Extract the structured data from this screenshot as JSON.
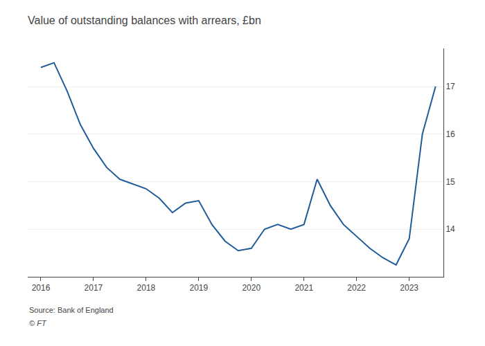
{
  "chart_data": {
    "type": "line",
    "title": "Value of outstanding balances with arrears, £bn",
    "annotations": [
      "Source: Bank of England",
      "© FT"
    ],
    "color": "#1f5c99",
    "grid": "y",
    "xlim": [
      2015.75,
      2023.65
    ],
    "xticks": [
      2016,
      2017,
      2018,
      2019,
      2020,
      2021,
      2022,
      2023
    ],
    "ylim": [
      13.0,
      17.8
    ],
    "yticks": [
      14,
      15,
      16,
      17
    ],
    "x": [
      2016.0,
      2016.25,
      2016.5,
      2016.75,
      2017.0,
      2017.25,
      2017.5,
      2017.75,
      2018.0,
      2018.25,
      2018.5,
      2018.75,
      2019.0,
      2019.25,
      2019.5,
      2019.75,
      2020.0,
      2020.25,
      2020.5,
      2020.75,
      2021.0,
      2021.25,
      2021.5,
      2021.75,
      2022.0,
      2022.25,
      2022.5,
      2022.75,
      2023.0,
      2023.25,
      2023.5
    ],
    "values": [
      17.4,
      17.5,
      16.9,
      16.2,
      15.7,
      15.3,
      15.05,
      14.95,
      14.85,
      14.65,
      14.35,
      14.55,
      14.6,
      14.1,
      13.75,
      13.55,
      13.6,
      14.0,
      14.1,
      14.0,
      14.1,
      15.05,
      14.5,
      14.1,
      13.85,
      13.6,
      13.4,
      13.25,
      13.8,
      16.0,
      17.0
    ]
  }
}
